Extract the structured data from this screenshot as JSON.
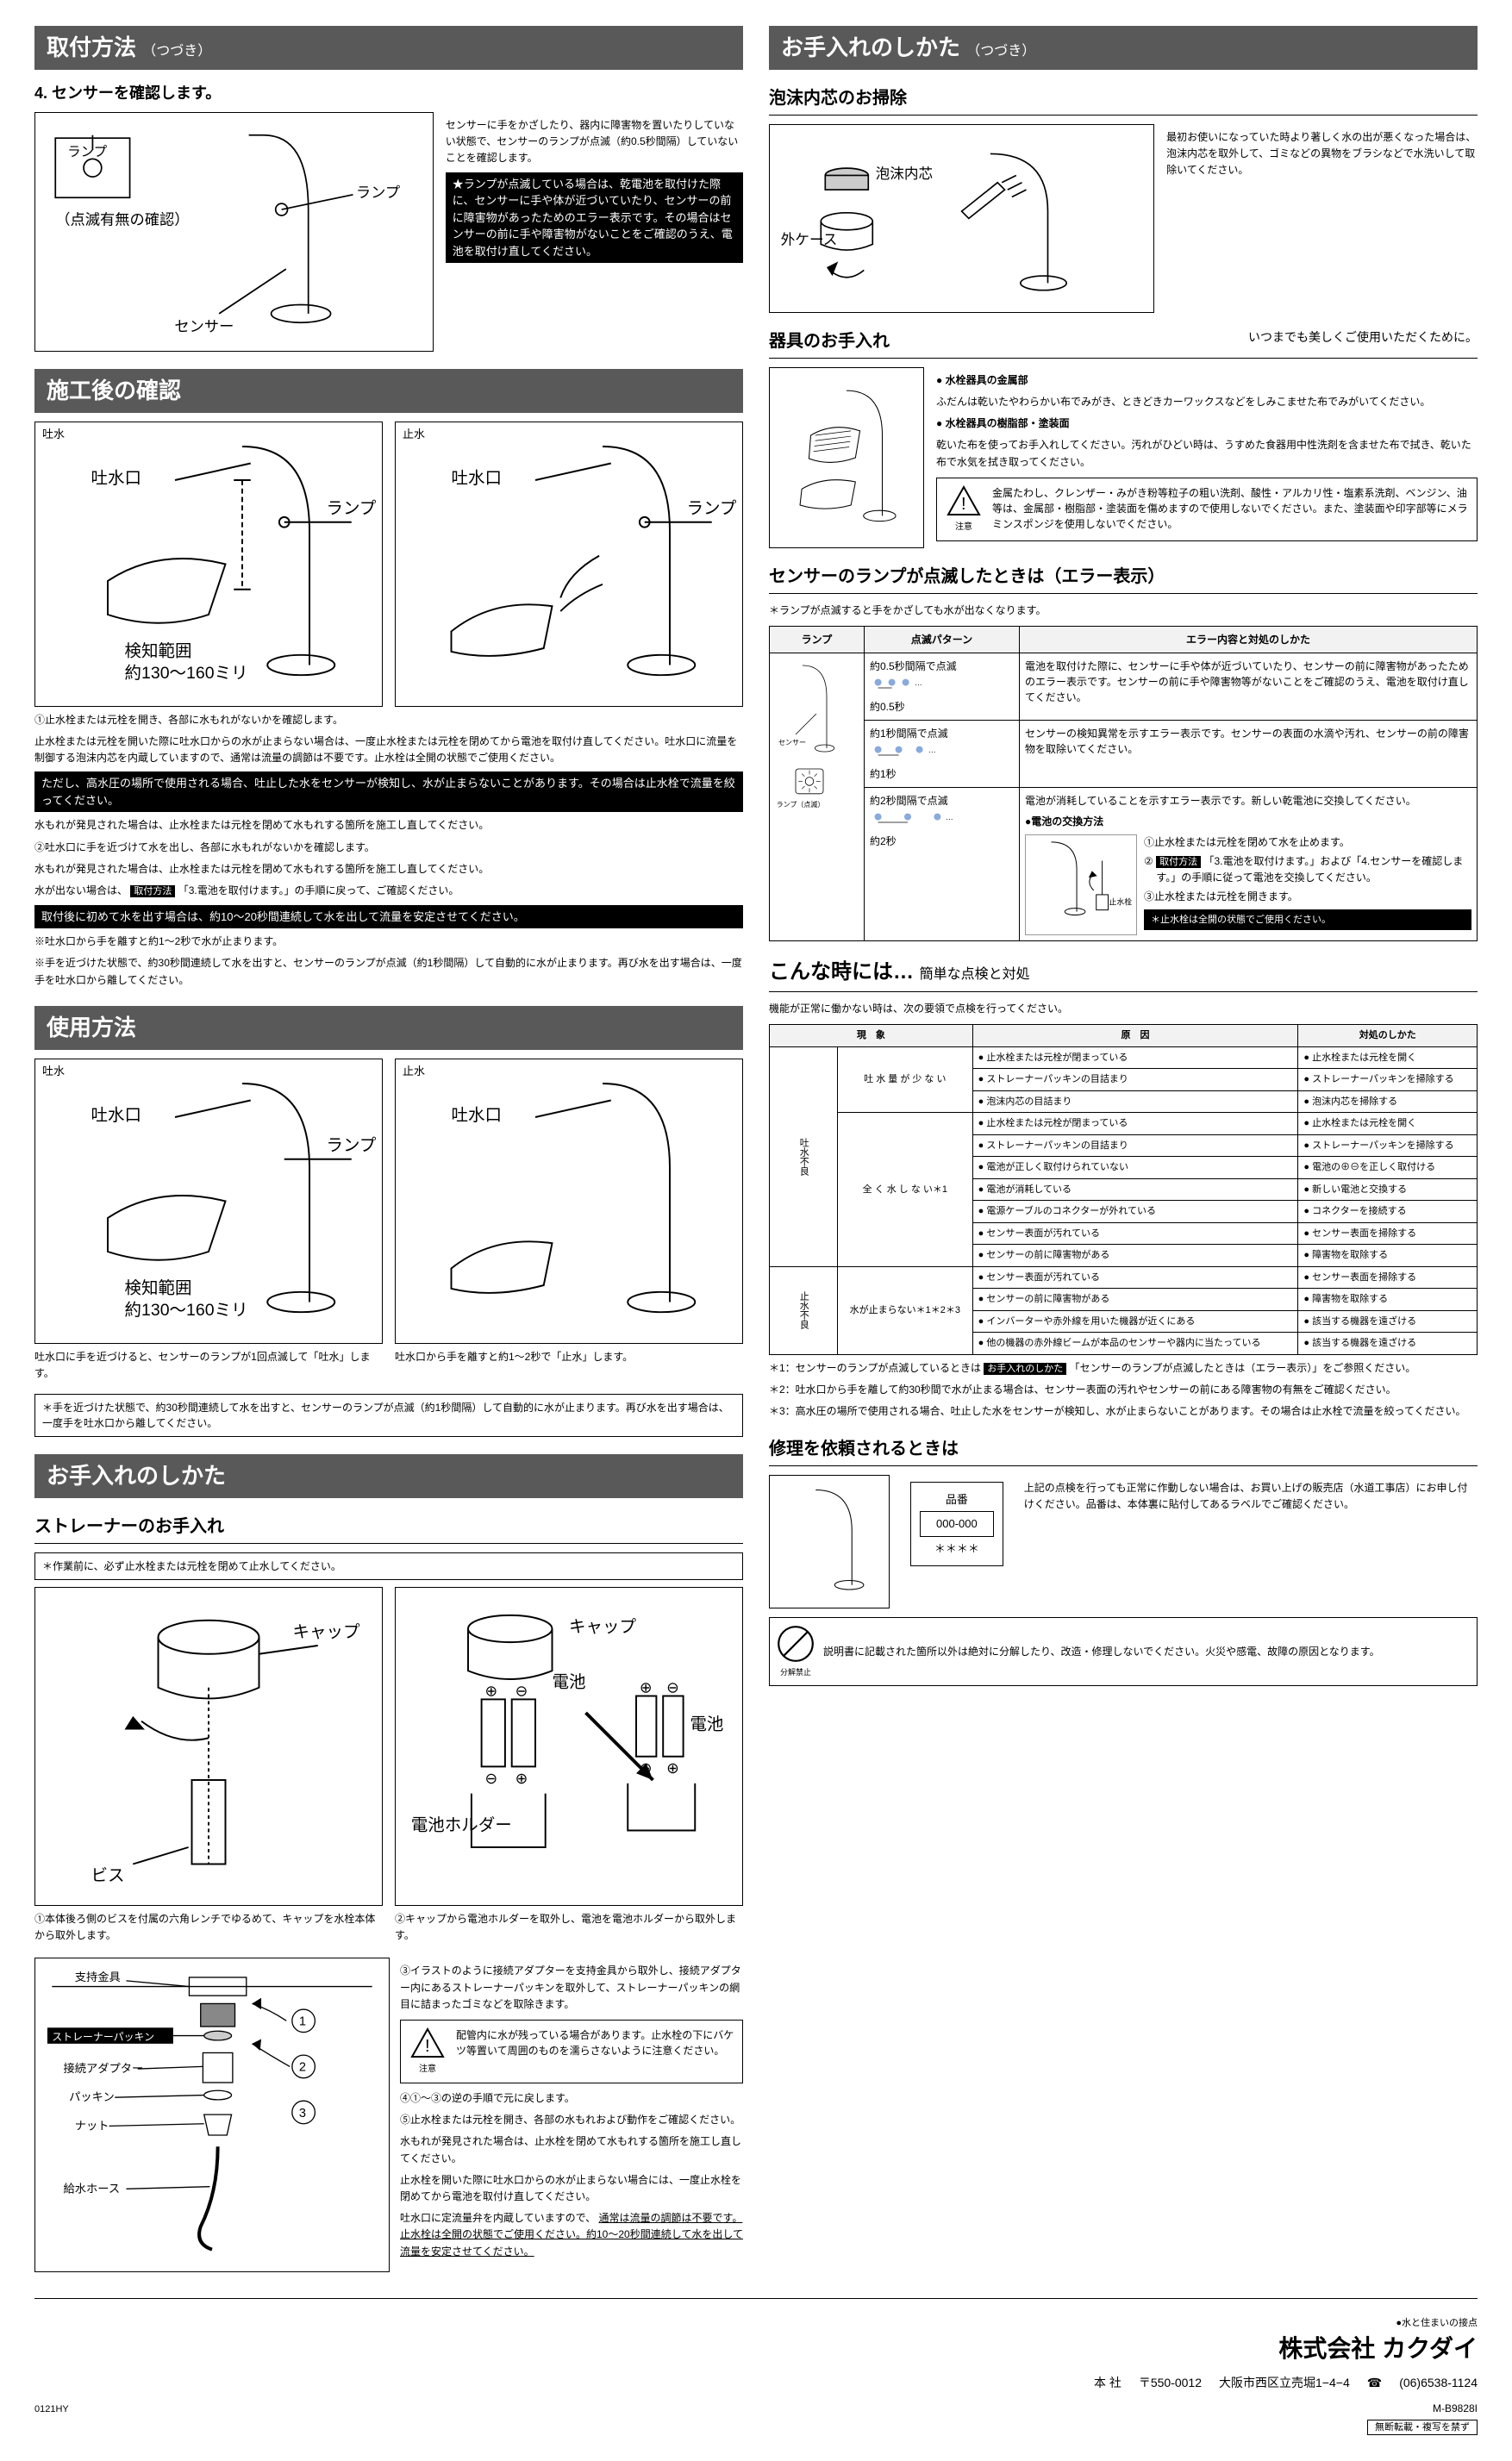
{
  "left": {
    "h1": "取付方法",
    "h1_sub": "（つづき）",
    "step4": "4. センサーを確認します。",
    "d4_text": "センサーに手をかざしたり、器内に障害物を置いたりしていない状態で、センサーのランプが点滅（約0.5秒間隔）していないことを確認します。",
    "d4_black": "★ランプが点滅している場合は、乾電池を取付けた際に、センサーに手や体が近づいていたり、センサーの前に障害物があったためのエラー表示です。その場合はセンサーの前に手や障害物がないことをご確認のうえ、電池を取付け直してください。",
    "d4_lbl_lamp": "ランプ",
    "d4_lbl_check": "（点滅有無の確認）",
    "d4_lbl_sensor": "センサー",
    "h2": "施工後の確認",
    "fig_tosui": "吐水",
    "fig_shisui": "止水",
    "fig_tosuiguchi": "吐水口",
    "fig_lamp": "ランプ",
    "fig_range": "検知範囲",
    "fig_range_val": "約130〜160ミリ",
    "conf1": "①止水栓または元栓を開き、各部に水もれがないかを確認します。",
    "conf1b": "止水栓または元栓を開いた際に吐水口からの水が止まらない場合は、一度止水栓または元栓を閉めてから電池を取付け直してください。吐水口に流量を制御する泡沫内芯を内蔵していますので、通常は流量の調節は不要です。止水栓は全開の状態でご使用ください。",
    "conf1_black": "ただし、高水圧の場所で使用される場合、吐止した水をセンサーが検知し、水が止まらないことがあります。その場合は止水栓で流量を絞ってください。",
    "conf1c": "水もれが発見された場合は、止水栓または元栓を閉めて水もれする箇所を施工し直してください。",
    "conf2": "②吐水口に手を近づけて水を出し、各部に水もれがないかを確認します。",
    "conf2b": "水もれが発見された場合は、止水栓または元栓を閉めて水もれする箇所を施工し直してください。",
    "conf2c": "水が出ない場合は、",
    "conf2c_tag": "取付方法",
    "conf2c2": "「3.電池を取付けます。」の手順に戻って、ご確認ください。",
    "conf2_black": "取付後に初めて水を出す場合は、約10〜20秒間連続して水を出して流量を安定させてください。",
    "conf3": "※吐水口から手を離すと約1〜2秒で水が止まります。",
    "conf4": "※手を近づけた状態で、約30秒間連続して水を出すと、センサーのランプが点滅（約1秒間隔）して自動的に水が止まります。再び水を出す場合は、一度手を吐水口から離してください。",
    "h3": "使用方法",
    "use1": "吐水口に手を近づけると、センサーのランプが1回点滅して「吐水」します。",
    "use2": "吐水口から手を離すと約1〜2秒で「止水」します。",
    "use_note": "＊手を近づけた状態で、約30秒間連続して水を出すと、センサーのランプが点滅（約1秒間隔）して自動的に水が止まります。再び水を出す場合は、一度手を吐水口から離してください。",
    "h4": "お手入れのしかた",
    "sh_strainer": "ストレーナーのお手入れ",
    "str_note": "＊作業前に、必ず止水栓または元栓を閉めて止水してください。",
    "str_lbl_cap": "キャップ",
    "str_lbl_bis": "ビス",
    "str_lbl_batt": "電池",
    "str_lbl_holder": "電池ホルダー",
    "str1": "①本体後ろ側のビスを付属の六角レンチでゆるめて、キャップを水栓本体から取外します。",
    "str2": "②キャップから電池ホルダーを取外し、電池を電池ホルダーから取外します。",
    "str3": "③イラストのように接続アダプターを支持金具から取外し、接続アダプター内にあるストレーナーパッキンを取外して、ストレーナーパッキンの網目に詰まったゴミなどを取除きます。",
    "str_lbl_shiji": "支持金具",
    "str_lbl_spack": "ストレーナーパッキン",
    "str_lbl_adapter": "接続アダプター",
    "str_lbl_pack": "パッキン",
    "str_lbl_nut": "ナット",
    "str_lbl_hose": "給水ホース",
    "str_warn": "配管内に水が残っている場合があります。止水栓の下にバケツ等置いて周囲のものを濡らさないように注意ください。",
    "str_warn_label": "注意",
    "str4": "④①〜③の逆の手順で元に戻します。",
    "str5": "⑤止水栓または元栓を開き、各部の水もれおよび動作をご確認ください。",
    "str5b": "水もれが発見された場合は、止水栓を閉めて水もれする箇所を施工し直してください。",
    "str5c": "止水栓を開いた際に吐水口からの水が止まらない場合には、一度止水栓を閉めてから電池を取付け直してください。",
    "str5d": "吐水口に定流量弁を内蔵していますので、",
    "str5d_hl": "通常は流量の調節は不要です。止水栓は全開の状態でご使用ください。約10～20秒間連続して水を出して流量を安定させてください。"
  },
  "right": {
    "h1": "お手入れのしかた",
    "h1_sub": "（つづき）",
    "sh_foam": "泡沫内芯のお掃除",
    "foam_text": "最初お使いになっていた時より著しく水の出が悪くなった場合は、泡沫内芯を取外して、ゴミなどの異物をブラシなどで水洗いして取除いてください。",
    "foam_lbl1": "泡沫内芯",
    "foam_lbl2": "外ケース",
    "sh_kigu": "器具のお手入れ",
    "kigu_right": "いつまでも美しくご使用いただくために。",
    "kigu_b1": "● 水栓器具の金属部",
    "kigu_b1t": "ふだんは乾いたやわらかい布でみがき、ときどきカーワックスなどをしみこませた布でみがいてください。",
    "kigu_b2": "● 水栓器具の樹脂部・塗装面",
    "kigu_b2t": "乾いた布を使ってお手入れしてください。汚れがひどい時は、うすめた食器用中性洗剤を含ませた布で拭き、乾いた布で水気を拭き取ってください。",
    "kigu_warn": "金属たわし、クレンザー・みがき粉等粒子の粗い洗剤、酸性・アルカリ性・塩素系洗剤、ベンジン、油等は、金属部・樹脂部・塗装面を傷めますので使用しないでください。また、塗装面や印字部等にメラミンスポンジを使用しないでください。",
    "kigu_warn_label": "注意",
    "sh_err": "センサーのランプが点滅したときは（エラー表示）",
    "err_note": "＊ランプが点滅すると手をかざしても水が出なくなります。",
    "err_th1": "ランプ",
    "err_th2": "点滅パターン",
    "err_th3": "エラー内容と対処のしかた",
    "err_lbl_sensor": "センサー",
    "err_lbl_lamp": "ランプ（点滅）",
    "err_p1": "約0.5秒間隔で点滅",
    "err_p1_int": "約0.5秒",
    "err_d1": "電池を取付けた際に、センサーに手や体が近づいていたり、センサーの前に障害物があったためのエラー表示です。センサーの前に手や障害物等がないことをご確認のうえ、電池を取付け直してください。",
    "err_p2": "約1秒間隔で点滅",
    "err_p2_int": "約1秒",
    "err_d2": "センサーの検知異常を示すエラー表示です。センサーの表面の水滴や汚れ、センサーの前の障害物を取除いてください。",
    "err_p3_title": "約2秒間隔で点滅",
    "err_p3": "●電池の交換方法",
    "err_p3_int": "約2秒",
    "err_d3a": "電池が消耗していることを示すエラー表示です。新しい乾電池に交換してください。",
    "err_lbl_stopv": "止水栓",
    "err_d3_1": "①止水栓または元栓を閉めて水を止めます。",
    "err_d3_2a": "②",
    "err_d3_2tag": "取付方法",
    "err_d3_2b": "「3.電池を取付けます。」および「4.センサーを確認します。」の手順に従って電池を交換してください。",
    "err_d3_3": "③止水栓または元栓を開きます。",
    "err_d3_black": "＊止水栓は全開の状態でご使用ください。",
    "sh_trouble": "こんな時には…",
    "sh_trouble_sub": "簡単な点検と対処",
    "trouble_intro": "機能が正常に働かない時は、次の要領で点検を行ってください。",
    "t_th1": "現　象",
    "t_th2": "原　因",
    "t_th3": "対処のしかた",
    "tg1": "吐水不良",
    "tg2": "止水不良",
    "tp1": "吐 水 量 が 少 な い",
    "tp2": "全 く 水 し な い＊1",
    "tp3": "水が止まらない＊1＊2＊3",
    "tc": [
      [
        "止水栓または元栓が閉まっている",
        "止水栓または元栓を開く"
      ],
      [
        "ストレーナーパッキンの目詰まり",
        "ストレーナーパッキンを掃除する"
      ],
      [
        "泡沫内芯の目詰まり",
        "泡沫内芯を掃除する"
      ],
      [
        "止水栓または元栓が閉まっている",
        "止水栓または元栓を開く"
      ],
      [
        "ストレーナーパッキンの目詰まり",
        "ストレーナーパッキンを掃除する"
      ],
      [
        "電池が正しく取付けられていない",
        "電池の⊕⊖を正しく取付ける"
      ],
      [
        "電池が消耗している",
        "新しい電池と交換する"
      ],
      [
        "電源ケーブルのコネクターが外れている",
        "コネクターを接続する"
      ],
      [
        "センサー表面が汚れている",
        "センサー表面を掃除する"
      ],
      [
        "センサーの前に障害物がある",
        "障害物を取除する"
      ],
      [
        "センサー表面が汚れている",
        "センサー表面を掃除する"
      ],
      [
        "センサーの前に障害物がある",
        "障害物を取除する"
      ],
      [
        "インバーターや赤外線を用いた機器が近くにある",
        "該当する機器を遠ざける"
      ],
      [
        "他の機器の赤外線ビームが本品のセンサーや器内に当たっている",
        "該当する機器を遠ざける"
      ]
    ],
    "tnote1": "＊1：センサーのランプが点滅しているときは",
    "tnote1_tag": "お手入れのしかた",
    "tnote1b": "「センサーのランプが点滅したときは（エラー表示）」をご参照ください。",
    "tnote2": "＊2：吐水口から手を離して約30秒間で水が止まる場合は、センサー表面の汚れやセンサーの前にある障害物の有無をご確認ください。",
    "tnote3": "＊3：高水圧の場所で使用される場合、吐止した水をセンサーが検知し、水が止まらないことがあります。その場合は止水栓で流量を絞ってください。",
    "sh_repair": "修理を依頼されるときは",
    "rep_hinban": "品番",
    "rep_num": "000-000",
    "rep_star": "＊＊＊＊",
    "rep_text": "上記の点検を行っても正常に作動しない場合は、お買い上げの販売店（水道工事店）にお申し付けください。品番は、本体裏に貼付してあるラベルでご確認ください。",
    "nd_label": "分解禁止",
    "nd_text": "説明書に記載された箇所以外は絶対に分解したり、改造・修理しないでください。火災や感電、故障の原因となります。"
  },
  "footer": {
    "slogan": "●水と住まいの接点",
    "company": "株式会社 カクダイ",
    "hq": "本 社",
    "zip": "〒550-0012",
    "addr": "大阪市西区立売堀1−4−4",
    "tel_lbl": "☎",
    "tel": "(06)6538-1124",
    "code1": "0121HY",
    "code2": "M-B9828I",
    "noc": "無断転載・複写を禁ず"
  }
}
